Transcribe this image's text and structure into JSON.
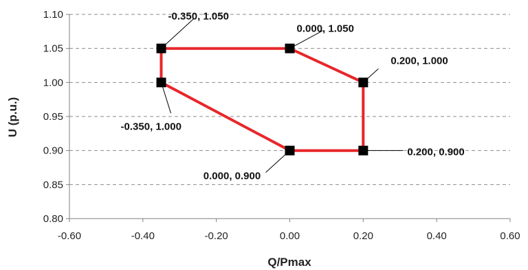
{
  "chart_data": {
    "type": "scatter",
    "title": "",
    "xlabel": "Q/Pmax",
    "ylabel": "U (p.u.)",
    "xlim": [
      -0.6,
      0.6
    ],
    "ylim": [
      0.8,
      1.1
    ],
    "x_ticks": [
      "-0.60",
      "-0.40",
      "-0.20",
      "0.00",
      "0.20",
      "0.40",
      "0.60"
    ],
    "y_ticks": [
      "0.80",
      "0.85",
      "0.90",
      "0.95",
      "1.00",
      "1.05",
      "1.10"
    ],
    "grid": "horizontal dashed",
    "legend": "none",
    "series": [
      {
        "x": [
          -0.35,
          0.0,
          0.2,
          0.2,
          0.0,
          -0.35,
          -0.35
        ],
        "y": [
          1.05,
          1.05,
          1.0,
          0.9,
          0.9,
          1.0,
          1.05
        ],
        "line_color": "#e8262a",
        "marker": "square",
        "marker_color": "#000000"
      }
    ],
    "point_labels": [
      {
        "x": -0.35,
        "y": 1.05,
        "text": "-0.350, 1.050"
      },
      {
        "x": 0.0,
        "y": 1.05,
        "text": "0.000, 1.050"
      },
      {
        "x": 0.2,
        "y": 1.0,
        "text": "0.200, 1.000"
      },
      {
        "x": 0.2,
        "y": 0.9,
        "text": "0.200, 0.900"
      },
      {
        "x": 0.0,
        "y": 0.9,
        "text": "0.000, 0.900"
      },
      {
        "x": -0.35,
        "y": 1.0,
        "text": "-0.350, 1.000"
      }
    ]
  }
}
